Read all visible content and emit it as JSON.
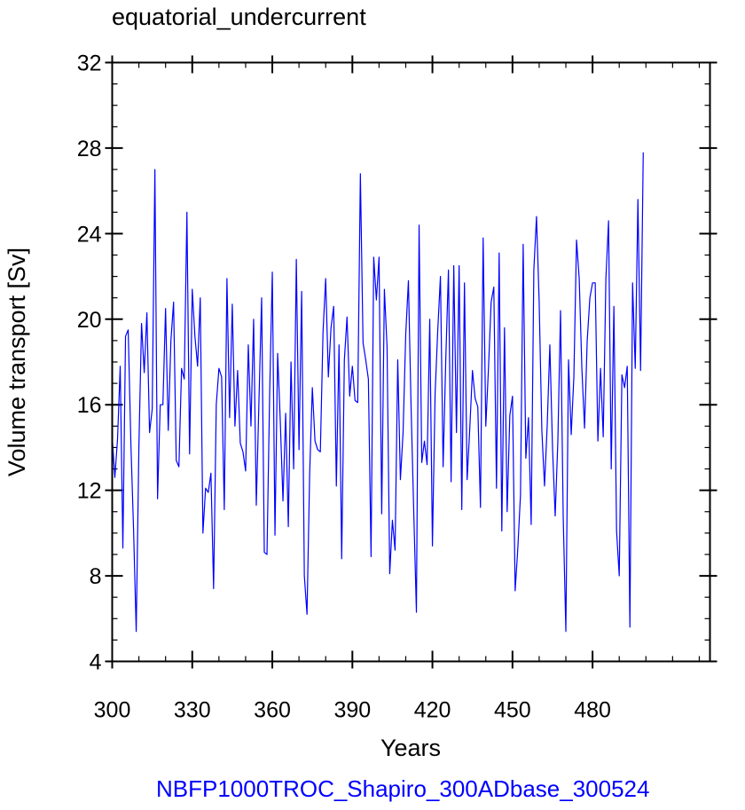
{
  "chart_data": {
    "type": "line",
    "title": "equatorial_undercurrent",
    "xlabel": "Years",
    "ylabel": "Volume transport [Sv]",
    "footer": "NBFP1000TROC_Shapiro_300ADbase_300524",
    "xlim": [
      300,
      524
    ],
    "ylim": [
      4,
      32
    ],
    "x_ticks": [
      300,
      330,
      360,
      390,
      420,
      450,
      480
    ],
    "y_ticks": [
      4,
      8,
      12,
      16,
      20,
      24,
      28,
      32
    ],
    "x_minor_step": 10,
    "y_minor_step": 1,
    "series": [
      {
        "color": "#0000ff",
        "x_start": 300,
        "x_step": 1,
        "values": [
          14.5,
          12.6,
          14.4,
          17.8,
          9.3,
          19.2,
          19.5,
          14.2,
          10.2,
          5.4,
          14.0,
          19.8,
          17.5,
          20.3,
          14.7,
          15.8,
          27.0,
          11.6,
          16.0,
          16.0,
          20.5,
          14.8,
          19.0,
          20.8,
          13.4,
          13.1,
          17.7,
          17.2,
          25.0,
          13.7,
          21.4,
          19.2,
          17.8,
          21.0,
          10.0,
          12.1,
          11.9,
          12.8,
          7.4,
          16.0,
          17.7,
          17.3,
          11.1,
          21.9,
          15.4,
          20.7,
          15.0,
          17.6,
          14.2,
          13.8,
          12.9,
          18.8,
          15.0,
          20.0,
          11.3,
          16.2,
          21.0,
          9.1,
          9.0,
          16.5,
          22.2,
          9.9,
          18.4,
          15.2,
          11.5,
          15.6,
          10.3,
          18.0,
          13.0,
          22.8,
          13.9,
          21.3,
          8.0,
          6.2,
          12.8,
          16.8,
          14.3,
          13.9,
          13.8,
          19.4,
          21.9,
          17.3,
          19.6,
          20.6,
          12.2,
          18.8,
          8.8,
          18.1,
          20.1,
          16.4,
          17.8,
          16.2,
          16.1,
          26.8,
          18.9,
          18.1,
          17.2,
          8.9,
          22.9,
          20.9,
          22.9,
          10.9,
          21.4,
          18.7,
          8.1,
          10.6,
          9.2,
          18.1,
          12.5,
          14.7,
          19.3,
          21.8,
          15.9,
          11.0,
          6.3,
          24.4,
          13.3,
          14.3,
          13.2,
          20.0,
          9.4,
          16.5,
          19.5,
          22.0,
          13.1,
          18.1,
          22.3,
          12.4,
          22.5,
          14.7,
          22.5,
          11.1,
          21.7,
          12.5,
          14.9,
          17.6,
          16.3,
          15.9,
          11.2,
          23.8,
          15.0,
          17.7,
          20.8,
          21.5,
          12.1,
          23.1,
          10.1,
          19.6,
          11.0,
          15.5,
          16.4,
          7.3,
          9.3,
          11.8,
          23.5,
          13.5,
          15.4,
          10.4,
          22.3,
          24.8,
          20.8,
          14.8,
          12.2,
          15.0,
          18.8,
          14.0,
          10.8,
          14.3,
          20.4,
          10.8,
          5.4,
          18.1,
          14.6,
          17.3,
          23.7,
          21.9,
          17.7,
          14.9,
          19.0,
          21.0,
          21.7,
          21.7,
          14.3,
          17.7,
          14.5,
          21.9,
          24.6,
          13.0,
          20.6,
          10.1,
          8.0,
          17.4,
          16.8,
          17.8,
          5.6,
          21.7,
          17.7,
          25.6,
          17.6,
          27.8
        ]
      }
    ]
  }
}
